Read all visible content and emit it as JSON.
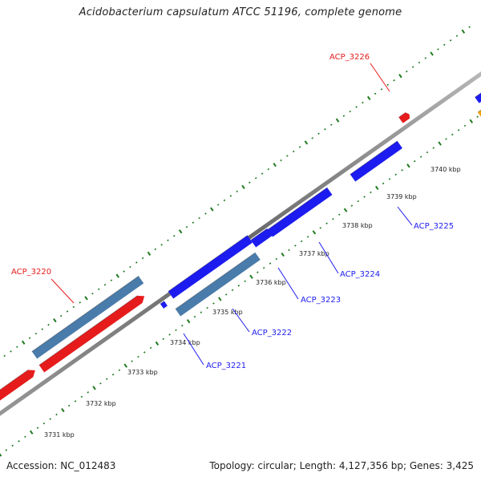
{
  "title": "Acidobacterium capsulatum ATCC 51196, complete genome",
  "footer": {
    "accession": "Accession: NC_012483",
    "summary": "Topology: circular; Length: 4,127,356 bp; Genes: 3,425"
  },
  "colors": {
    "forward_cds": "#e61c1c",
    "reverse_cds": "#1c1cf0",
    "rna": "#4a7cab",
    "other": "#f4a000",
    "tick": "#1f7a1f",
    "backbone": "#777777"
  },
  "ticks": [
    {
      "label": "3731 kbp"
    },
    {
      "label": "3732 kbp"
    },
    {
      "label": "3733 kbp"
    },
    {
      "label": "3734 kbp"
    },
    {
      "label": "3735 kbp"
    },
    {
      "label": "3736 kbp"
    },
    {
      "label": "3737 kbp"
    },
    {
      "label": "3738 kbp"
    },
    {
      "label": "3739 kbp"
    },
    {
      "label": "3740 kbp"
    }
  ],
  "gene_labels": [
    {
      "text": "ACP_3226",
      "strand": "forward"
    },
    {
      "text": "ACP_3220",
      "strand": "forward"
    },
    {
      "text": "ACP_3225",
      "strand": "reverse"
    },
    {
      "text": "ACP_3224",
      "strand": "reverse"
    },
    {
      "text": "ACP_3223",
      "strand": "reverse"
    },
    {
      "text": "ACP_3222",
      "strand": "reverse"
    },
    {
      "text": "ACP_3221",
      "strand": "reverse"
    }
  ]
}
